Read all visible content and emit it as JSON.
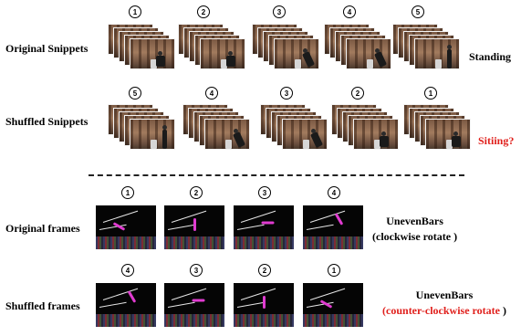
{
  "top": {
    "row1_label": "Original Snippets",
    "row1_side": "Standing",
    "row1_numbers": [
      "1",
      "2",
      "3",
      "4",
      "5"
    ],
    "row2_label": "Shuffled Snippets",
    "row2_side": "Sitiing?",
    "row2_numbers": [
      "5",
      "4",
      "3",
      "2",
      "1"
    ]
  },
  "bottom": {
    "row1_label": "Original frames",
    "row1_side_line1": "UnevenBars",
    "row1_side_line2": "(clockwise rotate )",
    "row1_numbers": [
      "1",
      "2",
      "3",
      "4"
    ],
    "row2_label": "Shuffled frames",
    "row2_side_line1": "UnevenBars",
    "row2_side_paren_open": "(",
    "row2_side_red": "counter-clockwise rotate",
    "row2_side_paren_close": " )",
    "row2_numbers": [
      "4",
      "3",
      "2",
      "1"
    ]
  },
  "colors": {
    "highlight": "#e0201c",
    "gymnast": "#e03bd0"
  }
}
